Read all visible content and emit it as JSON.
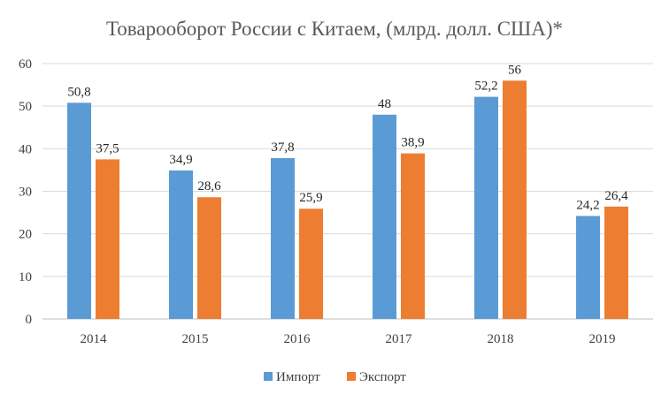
{
  "chart_data": {
    "type": "bar",
    "title": "Товарооборот России с Китаем, (млрд. долл. США)*",
    "categories": [
      "2014",
      "2015",
      "2016",
      "2017",
      "2018",
      "2019"
    ],
    "series": [
      {
        "name": "Импорт",
        "color": "#5b9bd5",
        "values": [
          50.8,
          34.9,
          37.8,
          48,
          52.2,
          24.2
        ],
        "labels": [
          "50,8",
          "34,9",
          "37,8",
          "48",
          "52,2",
          "24,2"
        ]
      },
      {
        "name": "Экспорт",
        "color": "#ed7d31",
        "values": [
          37.5,
          28.6,
          25.9,
          38.9,
          56,
          26.4
        ],
        "labels": [
          "37,5",
          "28,6",
          "25,9",
          "38,9",
          "56",
          "26,4"
        ]
      }
    ],
    "y_ticks": [
      "0",
      "10",
      "20",
      "30",
      "40",
      "50",
      "60"
    ],
    "ylim": [
      0,
      60
    ],
    "grid": true,
    "legend": "bottom"
  }
}
